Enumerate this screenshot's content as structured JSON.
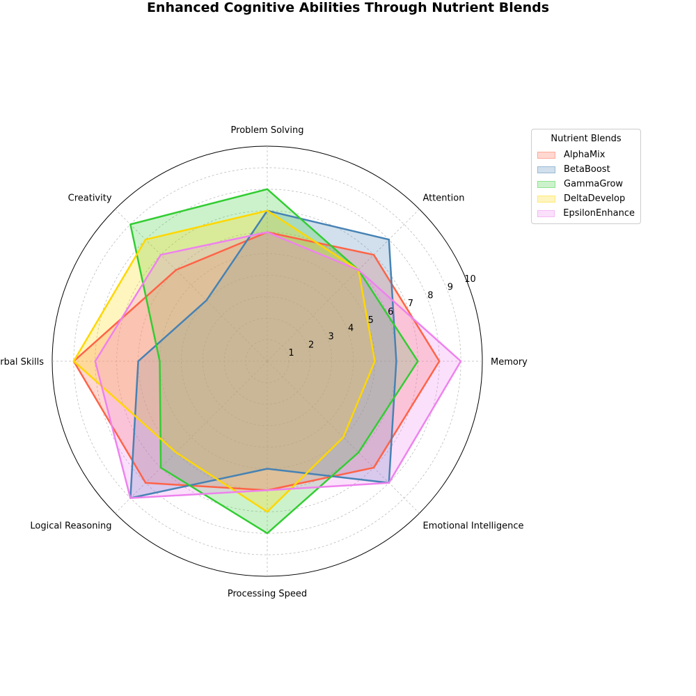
{
  "chart_data": {
    "type": "radar",
    "title": "Enhanced Cognitive Abilities Through Nutrient Blends",
    "axes": [
      "Memory",
      "Attention",
      "Problem Solving",
      "Creativity",
      "Verbal Skills",
      "Logical Reasoning",
      "Processing Speed",
      "Emotional Intelligence"
    ],
    "rlim": [
      0,
      10
    ],
    "r_ticks": [
      "1",
      "2",
      "3",
      "4",
      "5",
      "6",
      "7",
      "8",
      "9",
      "10"
    ],
    "grid": true,
    "legend": {
      "title": "Nutrient Blends",
      "placement": "outside-top-right"
    },
    "series": [
      {
        "name": "AlphaMix",
        "values": [
          8,
          7,
          6,
          6,
          9,
          8,
          6,
          7
        ],
        "color": "#ff6347"
      },
      {
        "name": "BetaBoost",
        "values": [
          6,
          8,
          7,
          4,
          6,
          9,
          5,
          8
        ],
        "color": "#4682b4"
      },
      {
        "name": "GammaGrow",
        "values": [
          7,
          6,
          8,
          9,
          5,
          7,
          8,
          6
        ],
        "color": "#32cd32"
      },
      {
        "name": "DeltaDevelop",
        "values": [
          5,
          6,
          7,
          8,
          9,
          6,
          7,
          5
        ],
        "color": "#ffd700"
      },
      {
        "name": "EpsilonEnhance",
        "values": [
          9,
          6,
          6,
          7,
          8,
          9,
          6,
          8
        ],
        "color": "#ee82ee"
      }
    ]
  }
}
